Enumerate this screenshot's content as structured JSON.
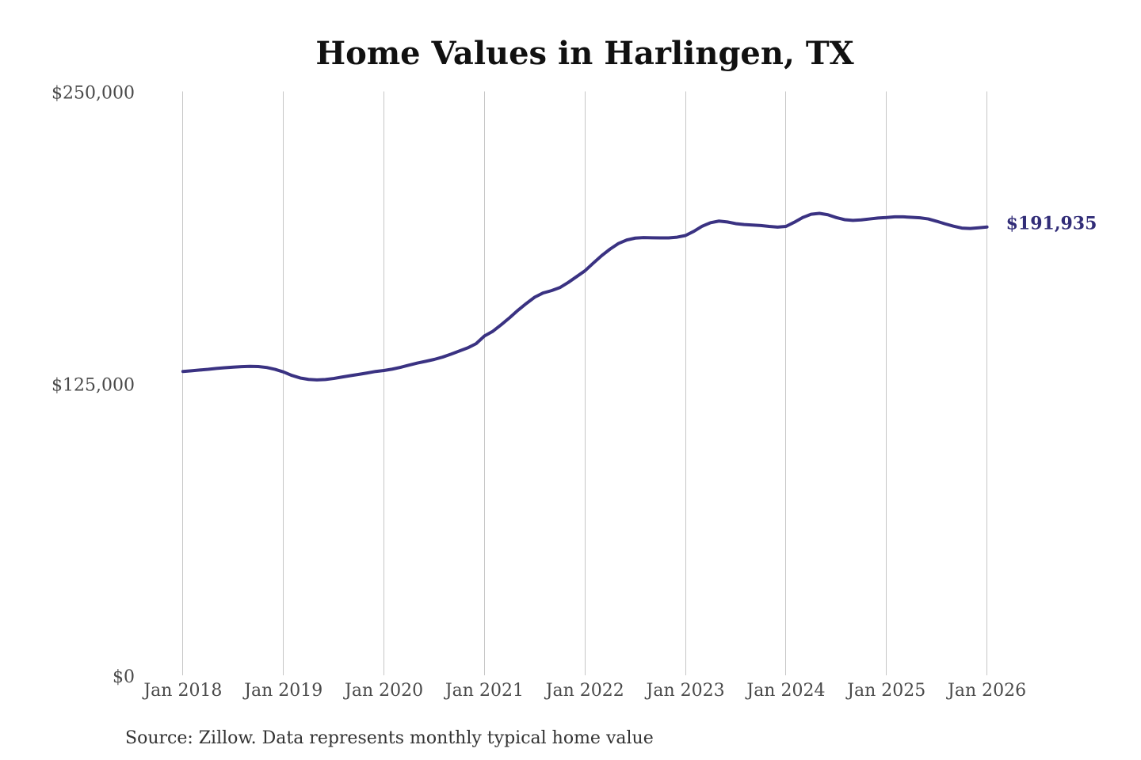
{
  "page": {
    "background": "#ffffff"
  },
  "chart_data": {
    "type": "line",
    "title": "Home Values in Harlingen, TX",
    "source_note": "Source: Zillow. Data represents monthly typical home value",
    "xlabel": "",
    "ylabel": "",
    "ylim": [
      0,
      250000
    ],
    "grid": "vertical-only",
    "legend": "none",
    "x_tick_labels": [
      "Jan 2018",
      "Jan 2019",
      "Jan 2020",
      "Jan 2021",
      "Jan 2022",
      "Jan 2023",
      "Jan 2024",
      "Jan 2025",
      "Jan 2026"
    ],
    "y_ticks": [
      {
        "value": 0,
        "label": "$0"
      },
      {
        "value": 125000,
        "label": "$125,000"
      },
      {
        "value": 250000,
        "label": "$250,000"
      }
    ],
    "end_label": "$191,935",
    "end_value": 191935,
    "series": [
      {
        "name": "Typical home value",
        "frequency": "monthly",
        "start": "Jan 2018",
        "end": "Jan 2026",
        "values": [
          130100,
          130400,
          130700,
          131000,
          131400,
          131700,
          131950,
          132150,
          132300,
          132200,
          131800,
          131000,
          129900,
          128400,
          127300,
          126700,
          126500,
          126650,
          127100,
          127700,
          128300,
          128850,
          129450,
          130100,
          130500,
          131100,
          131900,
          132800,
          133700,
          134450,
          135250,
          136250,
          137500,
          138850,
          140200,
          142000,
          145300,
          147300,
          150100,
          153100,
          156300,
          159200,
          161900,
          163700,
          164700,
          166000,
          168200,
          170700,
          173200,
          176500,
          179700,
          182500,
          184900,
          186400,
          187200,
          187400,
          187350,
          187300,
          187300,
          187600,
          188300,
          190100,
          192300,
          193800,
          194500,
          194100,
          193400,
          193000,
          192800,
          192600,
          192200,
          191900,
          192200,
          194000,
          196000,
          197400,
          197800,
          197200,
          196000,
          195100,
          194800,
          195000,
          195400,
          195800,
          196000,
          196300,
          196300,
          196100,
          195900,
          195400,
          194400,
          193300,
          192300,
          191500,
          191300,
          191600,
          191935
        ]
      }
    ],
    "colors": {
      "line": "#3a3282",
      "end_label": "#322d78",
      "grid": "#c6c6c6",
      "title": "#111111",
      "tick_label": "#4a4a4a",
      "source": "#333333",
      "background": "#ffffff"
    }
  }
}
